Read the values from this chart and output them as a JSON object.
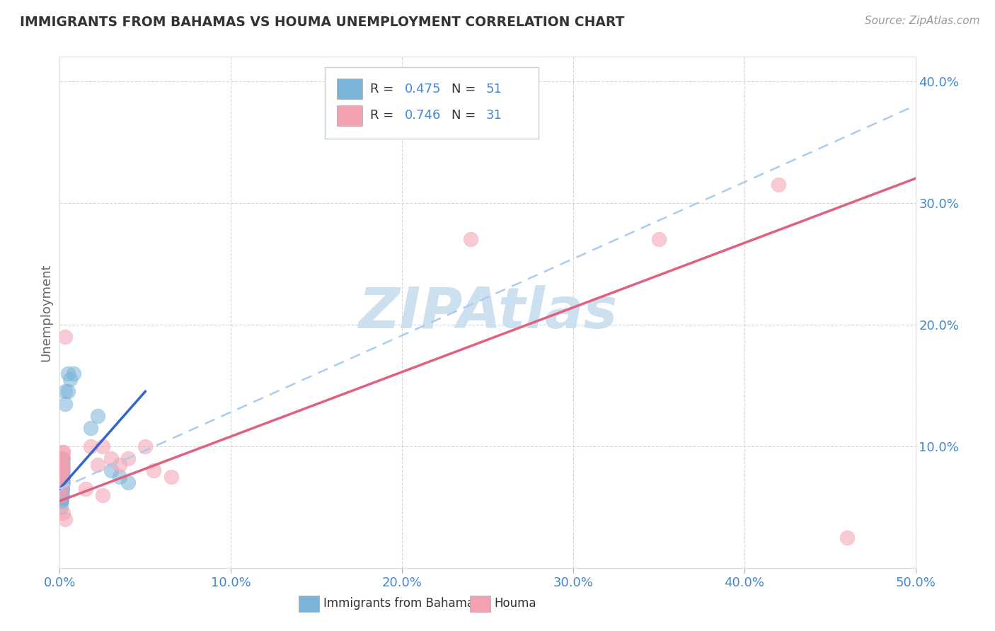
{
  "title": "IMMIGRANTS FROM BAHAMAS VS HOUMA UNEMPLOYMENT CORRELATION CHART",
  "source": "Source: ZipAtlas.com",
  "ylabel": "Unemployment",
  "xlim": [
    0,
    0.5
  ],
  "ylim": [
    0,
    0.42
  ],
  "xticks": [
    0.0,
    0.1,
    0.2,
    0.3,
    0.4,
    0.5
  ],
  "xtick_labels": [
    "0.0%",
    "10.0%",
    "20.0%",
    "30.0%",
    "40.0%",
    "50.0%"
  ],
  "yticks": [
    0.0,
    0.1,
    0.2,
    0.3,
    0.4
  ],
  "ytick_labels_right": [
    "",
    "10.0%",
    "20.0%",
    "30.0%",
    "40.0%"
  ],
  "blue_color": "#7ab4d8",
  "blue_line_color": "#3366cc",
  "pink_color": "#f4a0b0",
  "pink_line_color": "#e06080",
  "dash_color": "#aaccee",
  "watermark": "ZIPAtlas",
  "watermark_color": "#cce0f0",
  "background_color": "#ffffff",
  "grid_color": "#cccccc",
  "blue_scatter": [
    [
      0.0005,
      0.075
    ],
    [
      0.001,
      0.08
    ],
    [
      0.001,
      0.065
    ],
    [
      0.0015,
      0.09
    ],
    [
      0.0005,
      0.07
    ],
    [
      0.001,
      0.085
    ],
    [
      0.0015,
      0.07
    ],
    [
      0.0005,
      0.065
    ],
    [
      0.001,
      0.075
    ],
    [
      0.0015,
      0.08
    ],
    [
      0.0005,
      0.06
    ],
    [
      0.001,
      0.07
    ],
    [
      0.0005,
      0.055
    ],
    [
      0.0015,
      0.075
    ],
    [
      0.001,
      0.06
    ],
    [
      0.002,
      0.085
    ],
    [
      0.0005,
      0.065
    ],
    [
      0.0015,
      0.07
    ],
    [
      0.001,
      0.065
    ],
    [
      0.002,
      0.075
    ],
    [
      0.0005,
      0.06
    ],
    [
      0.001,
      0.06
    ],
    [
      0.0015,
      0.065
    ],
    [
      0.0005,
      0.055
    ],
    [
      0.002,
      0.08
    ],
    [
      0.001,
      0.075
    ],
    [
      0.0005,
      0.07
    ],
    [
      0.0015,
      0.06
    ],
    [
      0.002,
      0.07
    ],
    [
      0.001,
      0.055
    ],
    [
      0.0005,
      0.05
    ],
    [
      0.0015,
      0.065
    ],
    [
      0.002,
      0.075
    ],
    [
      0.001,
      0.065
    ],
    [
      0.0005,
      0.06
    ],
    [
      0.0015,
      0.08
    ],
    [
      0.001,
      0.07
    ],
    [
      0.0005,
      0.055
    ],
    [
      0.002,
      0.09
    ],
    [
      0.001,
      0.085
    ],
    [
      0.003,
      0.145
    ],
    [
      0.003,
      0.135
    ],
    [
      0.005,
      0.16
    ],
    [
      0.006,
      0.155
    ],
    [
      0.005,
      0.145
    ],
    [
      0.008,
      0.16
    ],
    [
      0.018,
      0.115
    ],
    [
      0.022,
      0.125
    ],
    [
      0.03,
      0.08
    ],
    [
      0.035,
      0.075
    ],
    [
      0.04,
      0.07
    ]
  ],
  "pink_scatter": [
    [
      0.0005,
      0.085
    ],
    [
      0.001,
      0.09
    ],
    [
      0.0005,
      0.075
    ],
    [
      0.0015,
      0.09
    ],
    [
      0.001,
      0.07
    ],
    [
      0.0015,
      0.085
    ],
    [
      0.002,
      0.095
    ],
    [
      0.001,
      0.065
    ],
    [
      0.0005,
      0.06
    ],
    [
      0.0015,
      0.08
    ],
    [
      0.001,
      0.075
    ],
    [
      0.0015,
      0.08
    ],
    [
      0.002,
      0.095
    ],
    [
      0.003,
      0.19
    ],
    [
      0.018,
      0.1
    ],
    [
      0.022,
      0.085
    ],
    [
      0.025,
      0.1
    ],
    [
      0.03,
      0.09
    ],
    [
      0.035,
      0.085
    ],
    [
      0.04,
      0.09
    ],
    [
      0.05,
      0.1
    ],
    [
      0.055,
      0.08
    ],
    [
      0.065,
      0.075
    ],
    [
      0.002,
      0.045
    ],
    [
      0.003,
      0.04
    ],
    [
      0.015,
      0.065
    ],
    [
      0.025,
      0.06
    ],
    [
      0.24,
      0.27
    ],
    [
      0.35,
      0.27
    ],
    [
      0.42,
      0.315
    ],
    [
      0.46,
      0.025
    ]
  ],
  "blue_line_x": [
    0.0,
    0.05
  ],
  "blue_line_y": [
    0.065,
    0.145
  ],
  "pink_line_x": [
    0.0,
    0.5
  ],
  "pink_line_y": [
    0.055,
    0.32
  ],
  "dash_line_x": [
    0.0,
    0.5
  ],
  "dash_line_y": [
    0.065,
    0.38
  ]
}
